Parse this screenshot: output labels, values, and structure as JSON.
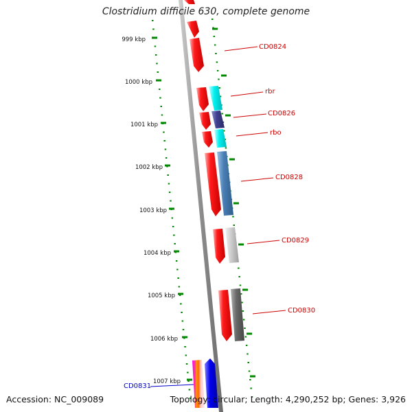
{
  "title": "Clostridium difficile 630, complete genome",
  "accession_text": "Accession: NC_009089",
  "topology_text": "Topology: circular; Length: 4,290,252 bp; Genes: 3,926",
  "scale_labels": [
    "999 kbp",
    "1000 kbp",
    "1001 kbp",
    "1002 kbp",
    "1003 kbp",
    "1004 kbp",
    "1005 kbp",
    "1006 kbp",
    "1007 kbp"
  ],
  "gene_labels": [
    {
      "text": "CD0824",
      "color": "#cc0000"
    },
    {
      "text": "rbr",
      "color": "#cc0000"
    },
    {
      "text": "CD0826",
      "color": "#cc0000"
    },
    {
      "text": "rbo",
      "color": "#cc0000"
    },
    {
      "text": "CD0828",
      "color": "#cc0000"
    },
    {
      "text": "CD0829",
      "color": "#cc0000"
    },
    {
      "text": "CD0830",
      "color": "#cc0000"
    },
    {
      "text": "CD0831",
      "color": "#0000cc"
    }
  ],
  "colors": {
    "cds": "#ee0000",
    "rbr": "#00e5e5",
    "CD0826": "#3f3f8f",
    "rbo": "#00e5e5",
    "CD0828": "#4a7fb5",
    "CD0829": "#c8c8c8",
    "CD0830": "#666666",
    "CD0831": "#0000ee",
    "ticks": "#008800",
    "backbone": "#8c8c8c"
  }
}
